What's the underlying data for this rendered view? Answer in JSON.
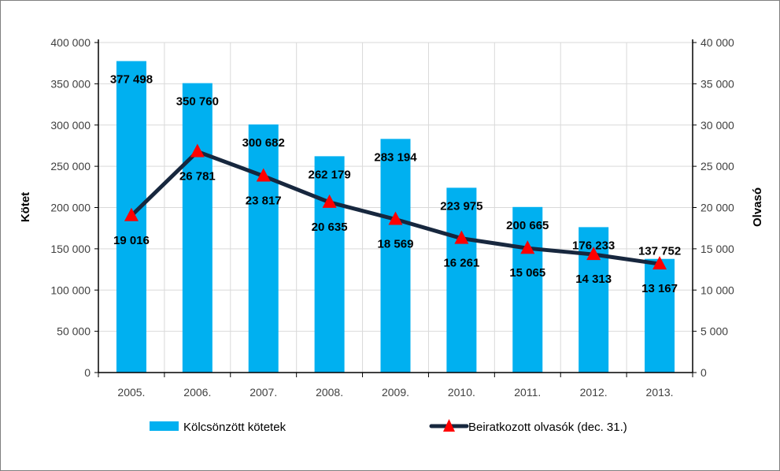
{
  "chart_data": {
    "type": "bar",
    "categories": [
      "2005.",
      "2006.",
      "2007.",
      "2008.",
      "2009.",
      "2010.",
      "2011.",
      "2012.",
      "2013."
    ],
    "series": [
      {
        "name": "Kölcsönzött kötetek",
        "type": "bar",
        "axis": "left",
        "color": "#00B0F0",
        "values": [
          377498,
          350760,
          300682,
          262179,
          283194,
          223975,
          200665,
          176233,
          137752
        ],
        "labels": [
          "377 498",
          "350 760",
          "300 682",
          "262 179",
          "283 194",
          "223 975",
          "200 665",
          "176 233",
          "137 752"
        ]
      },
      {
        "name": "Beiratkozott olvasók (dec. 31.)",
        "type": "line",
        "axis": "right",
        "color": "#17273E",
        "marker_color": "#FF0000",
        "marker": "triangle",
        "values": [
          19016,
          26781,
          23817,
          20635,
          18569,
          16261,
          15065,
          14313,
          13167
        ],
        "labels": [
          "19 016",
          "26 781",
          "23 817",
          "20 635",
          "18 569",
          "16 261",
          "15 065",
          "14 313",
          "13 167"
        ]
      }
    ],
    "ylabel": "Kötet",
    "y2label": "Olvasó",
    "ylim": [
      0,
      400000
    ],
    "y2lim": [
      0,
      40000
    ],
    "yticks": [
      "0",
      "50 000",
      "100 000",
      "150 000",
      "200 000",
      "250 000",
      "300 000",
      "350 000",
      "400 000"
    ],
    "y2ticks": [
      "0",
      "5 000",
      "10 000",
      "15 000",
      "20 000",
      "25 000",
      "30 000",
      "35 000",
      "40 000"
    ],
    "grid": true,
    "legend": "bottom"
  }
}
